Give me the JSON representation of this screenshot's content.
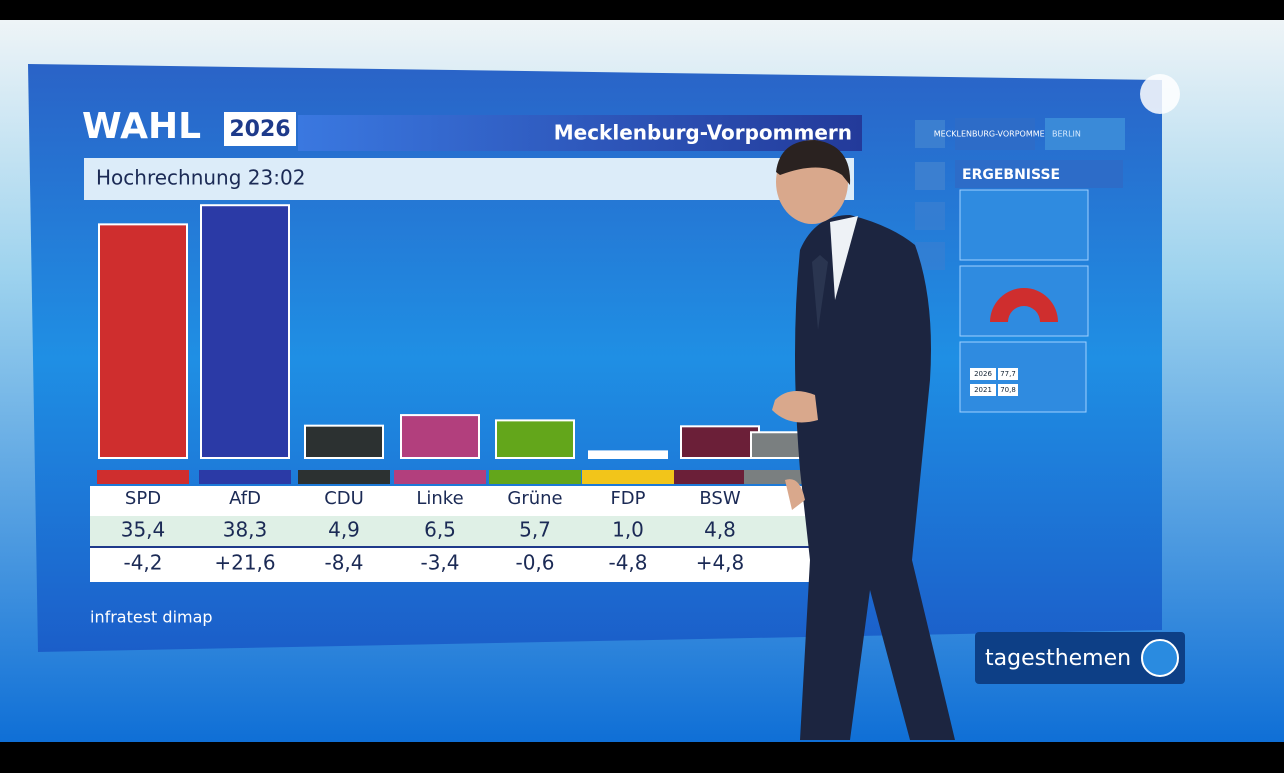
{
  "header": {
    "brand": "WAHL",
    "year": "2026",
    "region": "Mecklenburg-Vorpommern",
    "subtitle": "Hochrechnung 23:02"
  },
  "source": "infratest dimap",
  "side_menu": {
    "tabs": [
      "MECKLENBURG-VORPOMMERN",
      "BERLIN"
    ],
    "section": "ERGEBNISSE",
    "turnout_rows": [
      [
        "2026",
        "77,7"
      ],
      [
        "2021",
        "70,8"
      ]
    ]
  },
  "show": "tagesthemen",
  "chart_data": {
    "type": "bar",
    "categories": [
      "SPD",
      "AfD",
      "CDU",
      "Linke",
      "Grüne",
      "FDP",
      "BSW",
      null
    ],
    "values": [
      35.4,
      38.3,
      4.9,
      6.5,
      5.7,
      1.0,
      4.8,
      3.9
    ],
    "value_labels": [
      "35,4",
      "38,3",
      "4,9",
      "6,5",
      "5,7",
      "1,0",
      "4,8",
      null
    ],
    "colors": [
      "#cf2e2e",
      "#2b3aa6",
      "#2c3131",
      "#b23f7d",
      "#63a61b",
      "#f2c51a",
      "#6b1f38",
      "#7a7f80"
    ],
    "changes": {
      "values": [
        -4.2,
        21.6,
        -8.4,
        -3.4,
        -0.6,
        -4.8,
        4.8,
        null
      ],
      "value_labels": [
        "-4,2",
        "+21,6",
        "-8,4",
        "-3,4",
        "-0,6",
        "-4,8",
        "+4,8",
        null
      ]
    }
  }
}
